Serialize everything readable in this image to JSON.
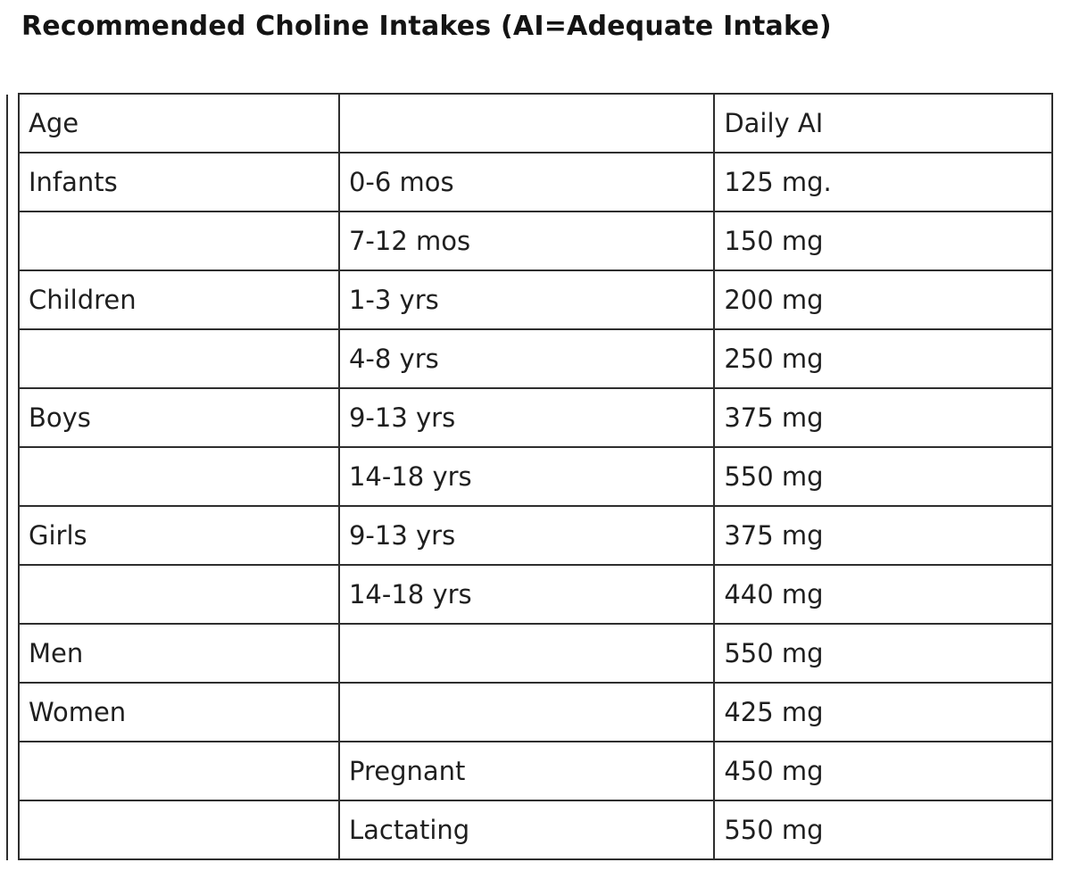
{
  "page": {
    "title": "Recommended Choline Intakes (AI=Adequate Intake)"
  },
  "table": {
    "headers": [
      "Age",
      "",
      "Daily AI"
    ],
    "rows": [
      {
        "group": "Infants",
        "range": "0-6 mos",
        "ai": "125 mg."
      },
      {
        "group": "",
        "range": "7-12 mos",
        "ai": "150 mg"
      },
      {
        "group": "Children",
        "range": "1-3 yrs",
        "ai": "200 mg"
      },
      {
        "group": "",
        "range": "4-8 yrs",
        "ai": "250 mg"
      },
      {
        "group": "Boys",
        "range": "9-13 yrs",
        "ai": "375 mg"
      },
      {
        "group": "",
        "range": "14-18 yrs",
        "ai": "550 mg"
      },
      {
        "group": "Girls",
        "range": "9-13 yrs",
        "ai": "375 mg"
      },
      {
        "group": "",
        "range": "14-18 yrs",
        "ai": "440 mg"
      },
      {
        "group": "Men",
        "range": "",
        "ai": "550 mg"
      },
      {
        "group": "Women",
        "range": "",
        "ai": "425 mg"
      },
      {
        "group": "",
        "range": "Pregnant",
        "ai": "450 mg"
      },
      {
        "group": "",
        "range": "Lactating",
        "ai": "550 mg"
      }
    ]
  }
}
